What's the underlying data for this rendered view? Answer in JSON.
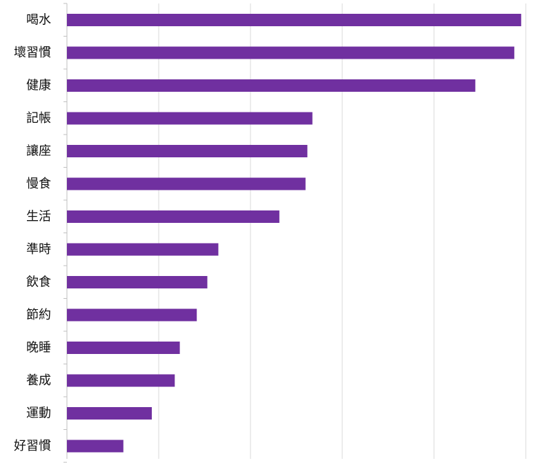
{
  "chart_data": {
    "type": "bar",
    "orientation": "horizontal",
    "categories": [
      "喝水",
      "壞習慣",
      "健康",
      "記帳",
      "讓座",
      "慢食",
      "生活",
      "準時",
      "飲食",
      "節約",
      "晚睡",
      "養成",
      "運動",
      "好習慣"
    ],
    "values": [
      99,
      97.5,
      89,
      53.5,
      52.4,
      52,
      46.3,
      33,
      30.6,
      28.3,
      24.6,
      23.5,
      18.5,
      12.3
    ],
    "xlim": [
      0,
      100
    ],
    "grid": true,
    "bar_color": "#7030a0",
    "title": "",
    "xlabel": "",
    "ylabel": ""
  }
}
